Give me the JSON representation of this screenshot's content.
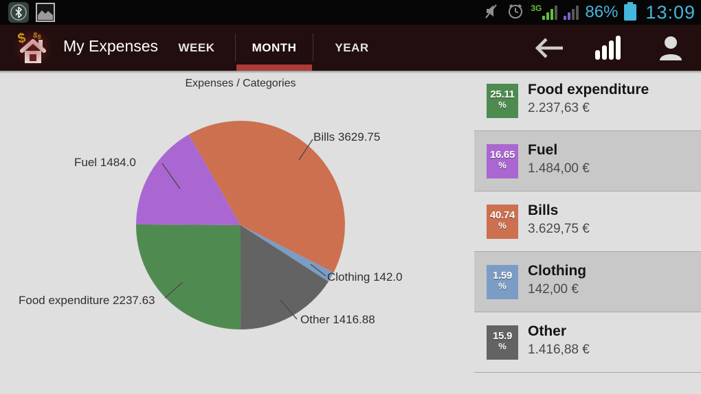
{
  "status_bar": {
    "time": "13:09",
    "battery_percent": "86%",
    "network_label": "3G",
    "icons": [
      "bluetooth-icon",
      "gallery-icon",
      "mute-icon",
      "alarm-icon",
      "signal-strength-icon",
      "secondary-signal-icon",
      "battery-icon"
    ]
  },
  "app_bar": {
    "title": "My Expenses",
    "tabs": [
      {
        "label": "WEEK",
        "selected": false
      },
      {
        "label": "MONTH",
        "selected": true
      },
      {
        "label": "YEAR",
        "selected": false
      }
    ],
    "icons": [
      "home-icon",
      "back-arrow-icon",
      "stats-icon",
      "profile-icon"
    ]
  },
  "chart_data": {
    "type": "pie",
    "title": "Expenses / Categories",
    "start_angle_deg": 90,
    "direction": "clockwise",
    "slices": [
      {
        "label": "Food expenditure",
        "value": 2237.63,
        "percent": 25.11,
        "color": "#4f8b51",
        "pie_label": "Food expenditure 2237.63"
      },
      {
        "label": "Fuel",
        "value": 1484.0,
        "percent": 16.65,
        "color": "#ab67d1",
        "pie_label": "Fuel 1484.0"
      },
      {
        "label": "Bills",
        "value": 3629.75,
        "percent": 40.74,
        "color": "#cc7050",
        "pie_label": "Bills 3629.75"
      },
      {
        "label": "Clothing",
        "value": 142.0,
        "percent": 1.59,
        "color": "#7b9dc5",
        "pie_label": "Clothing 142.0"
      },
      {
        "label": "Other",
        "value": 1416.88,
        "percent": 15.9,
        "color": "#636363",
        "pie_label": "Other 1416.88"
      }
    ]
  },
  "legend": {
    "percent_symbol": "%",
    "items": [
      {
        "name": "Food expenditure",
        "percent": "25.11",
        "amount": "2.237,63 €",
        "color": "#4f8b51",
        "highlighted": false
      },
      {
        "name": "Fuel",
        "percent": "16.65",
        "amount": "1.484,00 €",
        "color": "#ab67d1",
        "highlighted": true
      },
      {
        "name": "Bills",
        "percent": "40.74",
        "amount": "3.629,75 €",
        "color": "#cc7050",
        "highlighted": false
      },
      {
        "name": "Clothing",
        "percent": "1.59",
        "amount": "142,00 €",
        "color": "#7b9dc5",
        "highlighted": true
      },
      {
        "name": "Other",
        "percent": "15.9",
        "amount": "1.416,88 €",
        "color": "#636363",
        "highlighted": false
      }
    ]
  }
}
